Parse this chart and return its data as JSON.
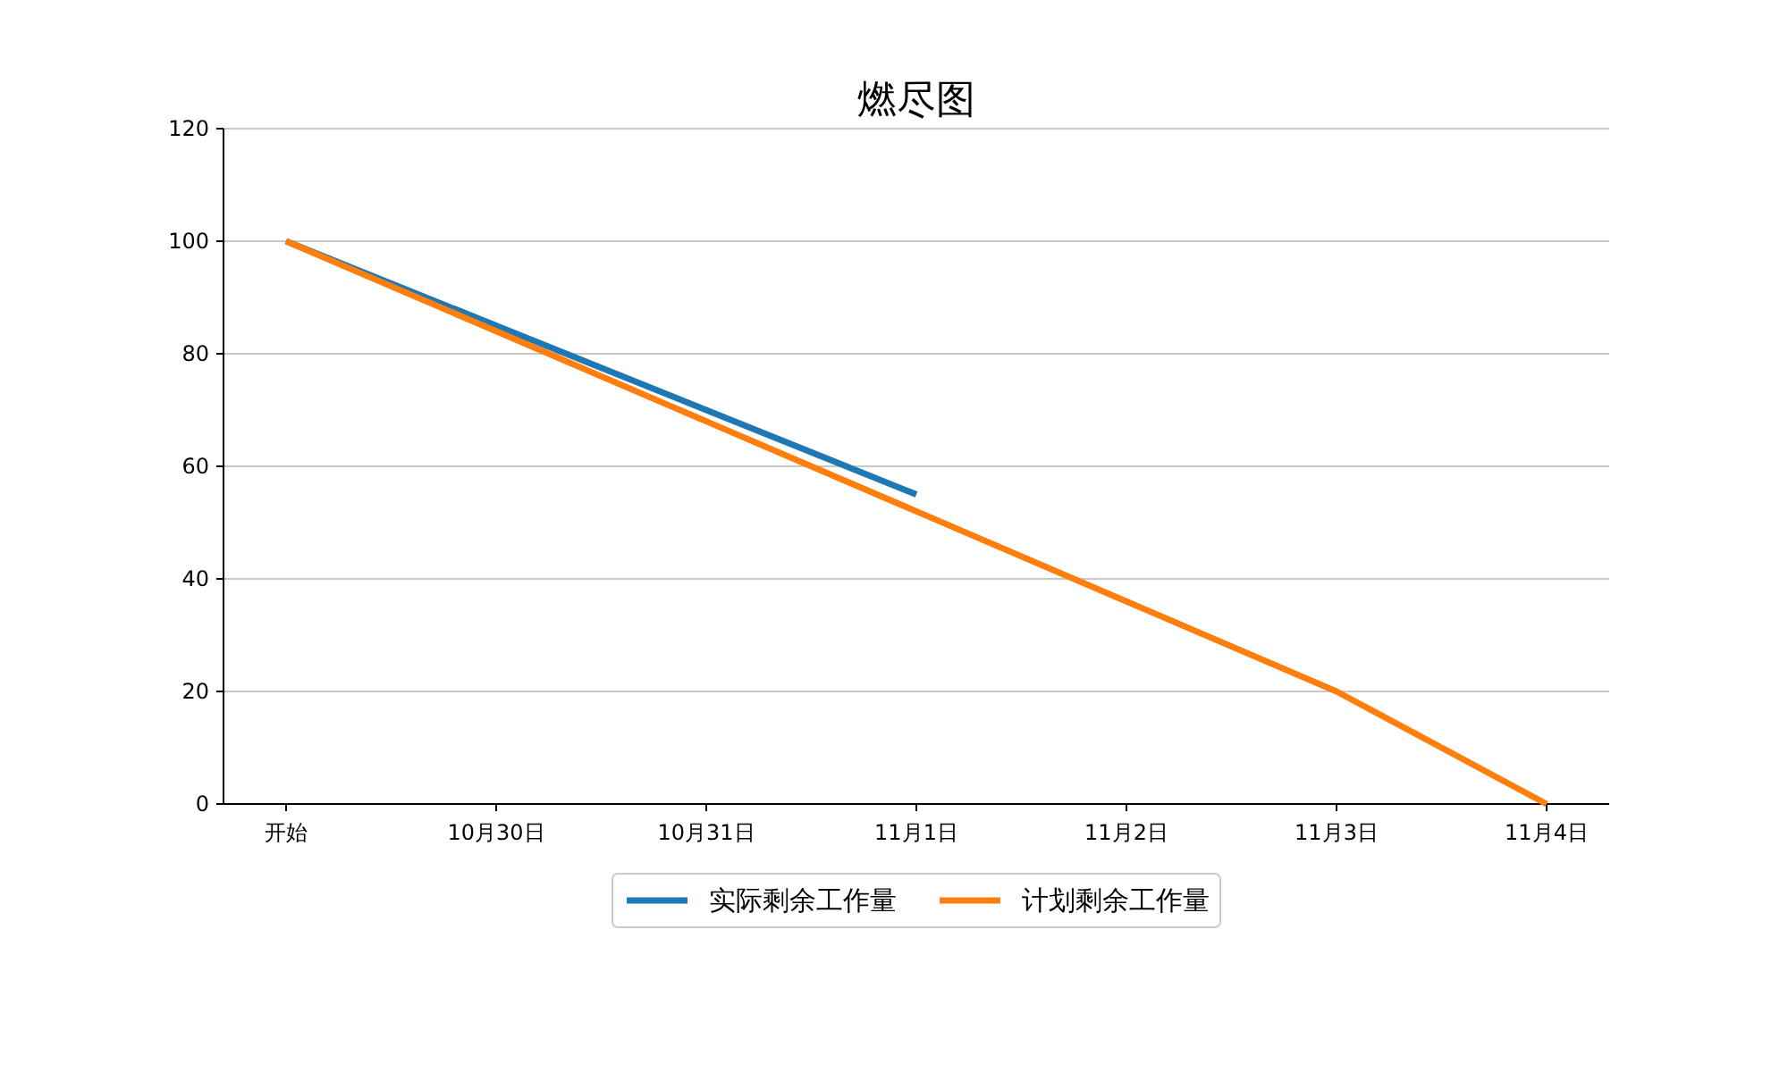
{
  "chart_data": {
    "type": "line",
    "title": "燃尽图",
    "categories": [
      "开始",
      "10月30日",
      "10月31日",
      "11月1日",
      "11月2日",
      "11月3日",
      "11月4日"
    ],
    "series": [
      {
        "name": "实际剩余工作量",
        "color": "#1f77b4",
        "values": [
          100,
          85,
          70,
          55,
          null,
          null,
          null
        ]
      },
      {
        "name": "计划剩余工作量",
        "color": "#ff7f0e",
        "values": [
          100,
          84,
          68,
          52,
          36,
          20,
          0
        ]
      }
    ],
    "ylim": [
      0,
      120
    ],
    "yticks": [
      0,
      20,
      40,
      60,
      80,
      100,
      120
    ],
    "grid": "y",
    "legend": "bottom",
    "marker": "none",
    "line_style": "solid"
  }
}
